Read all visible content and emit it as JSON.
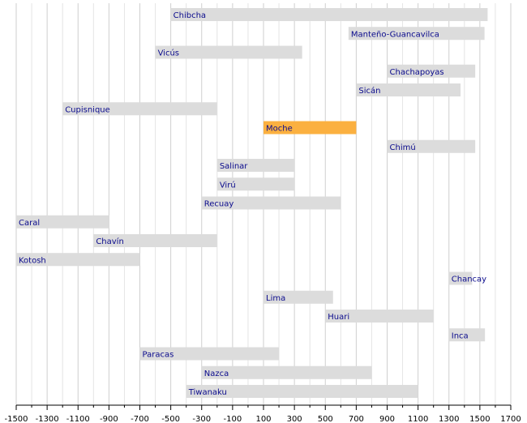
{
  "chart_data": {
    "type": "timeline",
    "categories": [
      "Chibcha",
      "Manteño-Guancavilca",
      "Vicús",
      "Chachapoyas",
      "Sicán",
      "Cupisnique",
      "Moche",
      "Chimú",
      "Salinar",
      "Virú",
      "Recuay",
      "Caral",
      "Chavín",
      "Kotosh",
      "Chancay",
      "Lima",
      "Huari",
      "Inca",
      "Paracas",
      "Nazca",
      "Tiwanaku"
    ],
    "start": [
      -500,
      650,
      -600,
      900,
      700,
      -1200,
      100,
      900,
      -200,
      -200,
      -300,
      -1500,
      -1000,
      -1500,
      1300,
      100,
      500,
      1300,
      -700,
      -300,
      -400
    ],
    "end": [
      1550,
      1530,
      350,
      1470,
      1375,
      -200,
      700,
      1470,
      300,
      300,
      600,
      -900,
      -200,
      -700,
      1450,
      550,
      1200,
      1533,
      200,
      800,
      1100
    ],
    "colors": [
      "#dcdcdc",
      "#dcdcdc",
      "#dcdcdc",
      "#dcdcdc",
      "#dcdcdc",
      "#dcdcdc",
      "#fbb040",
      "#dcdcdc",
      "#dcdcdc",
      "#dcdcdc",
      "#dcdcdc",
      "#dcdcdc",
      "#dcdcdc",
      "#dcdcdc",
      "#dcdcdc",
      "#dcdcdc",
      "#dcdcdc",
      "#dcdcdc",
      "#dcdcdc",
      "#dcdcdc",
      "#dcdcdc"
    ],
    "label_color": "#0a0a8c",
    "xlim": [
      -1500,
      1700
    ],
    "xticks": [
      -1500,
      -1300,
      -1100,
      -900,
      -700,
      -500,
      -300,
      -100,
      100,
      300,
      500,
      700,
      900,
      1100,
      1300,
      1500,
      1700
    ],
    "minor_xticks": [
      -1400,
      -1200,
      -1000,
      -800,
      -600,
      -400,
      -200,
      0,
      200,
      400,
      600,
      800,
      1000,
      1200,
      1400,
      1600
    ],
    "grid": true
  }
}
